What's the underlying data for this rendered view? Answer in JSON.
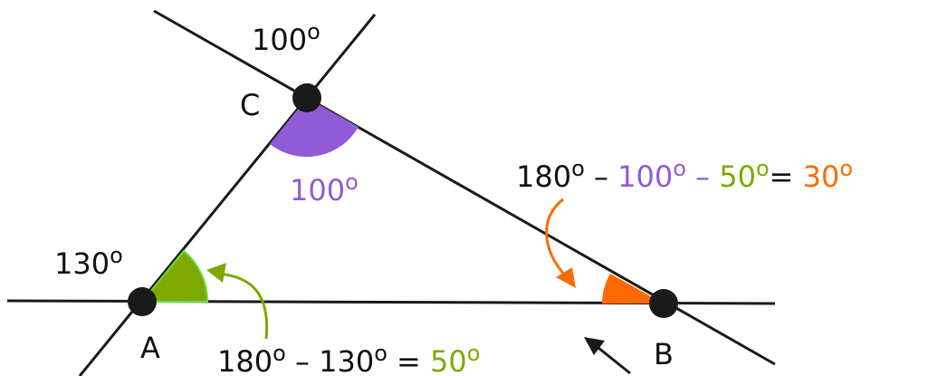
{
  "points": {
    "a": "A",
    "b": "B",
    "c": "C"
  },
  "degree_symbol": "o",
  "angles": {
    "exterior_c": "100",
    "interior_c": "100",
    "exterior_a": "130"
  },
  "equation_a": {
    "n180": "180",
    "minus": "–",
    "n130": "130",
    "eq": "=",
    "result": "50"
  },
  "equation_b": {
    "n180": "180",
    "minus1": "–",
    "n100": "100",
    "minus2": "–",
    "n50": "50",
    "eq": "=",
    "result": "30"
  },
  "colors": {
    "line": "#1a1a1a",
    "angle_c": "#8f5bd6",
    "angle_a": "#7fa800",
    "angle_a_edge": "#66e040",
    "angle_b": "#ff6a00",
    "text": "#111111"
  }
}
